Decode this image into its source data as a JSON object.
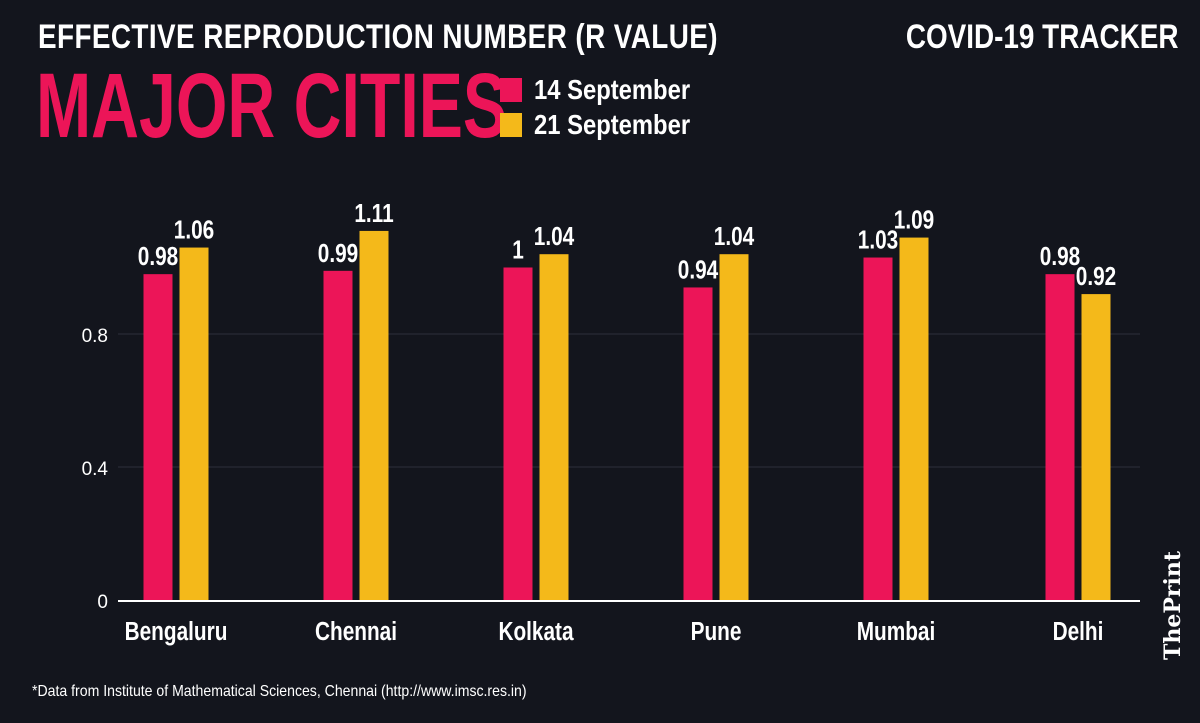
{
  "header": {
    "subtitle": "EFFECTIVE REPRODUCTION NUMBER (R VALUE)",
    "title": "MAJOR CITIES",
    "tracker": "COVID-19 TRACKER"
  },
  "footer": {
    "footnote": "*Data from Institute of Mathematical Sciences, Chennai (http://www.imsc.res.in)",
    "logo": "ThePrint"
  },
  "chart_data": {
    "type": "bar",
    "title": "MAJOR CITIES",
    "categories": [
      "Bengaluru",
      "Chennai",
      "Kolkata",
      "Pune",
      "Mumbai",
      "Delhi"
    ],
    "series": [
      {
        "name": "14 September",
        "color": "#ec1558",
        "values": [
          0.98,
          0.99,
          1,
          0.94,
          1.03,
          0.98
        ],
        "labels": [
          "0.98",
          "0.99",
          "1",
          "0.94",
          "1.03",
          "0.98"
        ]
      },
      {
        "name": "21 September",
        "color": "#f4b91a",
        "values": [
          1.06,
          1.11,
          1.04,
          1.04,
          1.09,
          0.92
        ],
        "labels": [
          "1.06",
          "1.11",
          "1.04",
          "1.04",
          "1.09",
          "0.92"
        ]
      }
    ],
    "yticks": [
      "0",
      "0.4",
      "0.8"
    ],
    "ylim": [
      0,
      1.2
    ],
    "grid": true,
    "legend": "top-center"
  }
}
